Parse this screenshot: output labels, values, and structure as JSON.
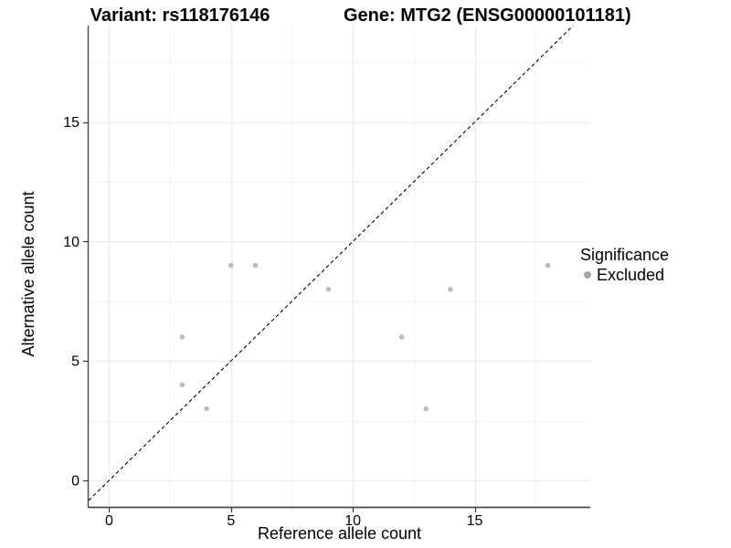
{
  "chart_data": {
    "type": "scatter",
    "title_left": "Variant: rs118176146",
    "title_right": "Gene: MTG2 (ENSG00000101181)",
    "xlabel": "Reference allele count",
    "ylabel": "Alternative allele count",
    "xlim": [
      -0.84,
      19.74
    ],
    "ylim": [
      -1.11,
      19.04
    ],
    "x_ticks": [
      0,
      5,
      10,
      15
    ],
    "y_ticks": [
      0,
      5,
      10,
      15
    ],
    "x_minor_gridlines": [
      2.5,
      7.5,
      12.5,
      17.5
    ],
    "y_minor_gridlines": [
      2.5,
      7.5,
      12.5,
      17.5
    ],
    "grid": "major and minor, very light gray, white background",
    "identity_line": {
      "style": "dashed",
      "slope": 1,
      "intercept": 0,
      "color": "#000000"
    },
    "series": [
      {
        "name": "Excluded",
        "points": [
          {
            "x": 3,
            "y": 4
          },
          {
            "x": 3,
            "y": 6
          },
          {
            "x": 4,
            "y": 3
          },
          {
            "x": 5,
            "y": 9
          },
          {
            "x": 6,
            "y": 9
          },
          {
            "x": 9,
            "y": 8
          },
          {
            "x": 12,
            "y": 6
          },
          {
            "x": 13,
            "y": 3
          },
          {
            "x": 14,
            "y": 8
          },
          {
            "x": 18,
            "y": 9
          }
        ]
      }
    ],
    "legend": {
      "position": "right",
      "title": "Significance",
      "items": [
        {
          "label": "Excluded",
          "color": "#a6a6a6"
        }
      ]
    }
  },
  "colors": {
    "point": "#bdbdbd",
    "grid_major": "#e9e9e9",
    "grid_minor": "#f5f5f5",
    "axis_line": "#4a4a4a",
    "tick_mark": "#333333",
    "tick_label": "#000000",
    "dash_line": "#000000",
    "background": "#ffffff"
  }
}
